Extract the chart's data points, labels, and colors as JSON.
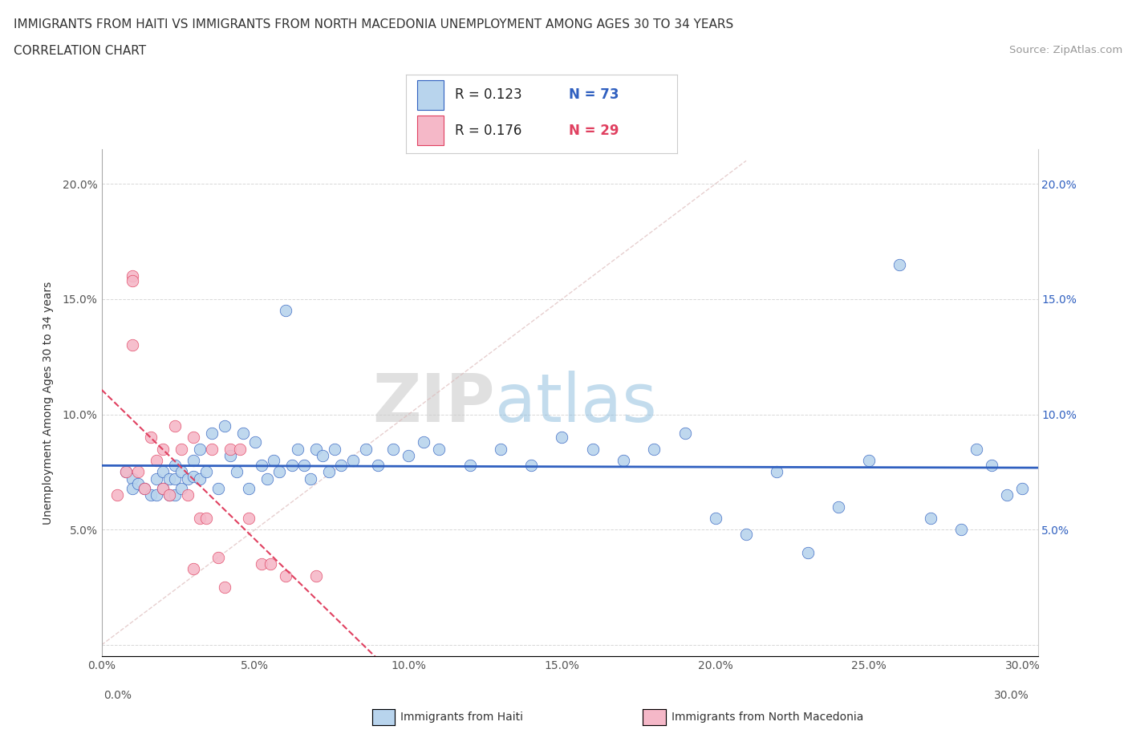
{
  "title_line1": "IMMIGRANTS FROM HAITI VS IMMIGRANTS FROM NORTH MACEDONIA UNEMPLOYMENT AMONG AGES 30 TO 34 YEARS",
  "title_line2": "CORRELATION CHART",
  "source_text": "Source: ZipAtlas.com",
  "ylabel": "Unemployment Among Ages 30 to 34 years",
  "legend_label1": "Immigrants from Haiti",
  "legend_label2": "Immigrants from North Macedonia",
  "legend_R1": "R = 0.123",
  "legend_N1": "N = 73",
  "legend_R2": "R = 0.176",
  "legend_N2": "N = 29",
  "xlim": [
    0.0,
    0.305
  ],
  "ylim": [
    -0.005,
    0.215
  ],
  "xtick_vals": [
    0.0,
    0.05,
    0.1,
    0.15,
    0.2,
    0.25,
    0.3
  ],
  "xtick_labels": [
    "0.0%",
    "5.0%",
    "10.0%",
    "15.0%",
    "20.0%",
    "25.0%",
    "30.0%"
  ],
  "ytick_vals": [
    0.0,
    0.05,
    0.1,
    0.15,
    0.2
  ],
  "ytick_labels": [
    "",
    "5.0%",
    "10.0%",
    "15.0%",
    "20.0%"
  ],
  "color_haiti": "#b8d4ed",
  "color_macedonia": "#f5b8c8",
  "color_line_haiti": "#3060c0",
  "color_line_macedonia": "#e04060",
  "haiti_x": [
    0.008,
    0.01,
    0.01,
    0.012,
    0.014,
    0.016,
    0.018,
    0.018,
    0.02,
    0.02,
    0.022,
    0.022,
    0.024,
    0.024,
    0.024,
    0.026,
    0.026,
    0.028,
    0.03,
    0.03,
    0.032,
    0.032,
    0.034,
    0.036,
    0.038,
    0.04,
    0.042,
    0.044,
    0.046,
    0.048,
    0.05,
    0.052,
    0.054,
    0.056,
    0.058,
    0.06,
    0.062,
    0.064,
    0.066,
    0.068,
    0.07,
    0.072,
    0.074,
    0.076,
    0.078,
    0.082,
    0.086,
    0.09,
    0.095,
    0.1,
    0.105,
    0.11,
    0.12,
    0.13,
    0.14,
    0.15,
    0.16,
    0.17,
    0.18,
    0.19,
    0.2,
    0.21,
    0.22,
    0.23,
    0.24,
    0.25,
    0.26,
    0.27,
    0.28,
    0.285,
    0.29,
    0.295,
    0.3
  ],
  "haiti_y": [
    0.075,
    0.072,
    0.068,
    0.07,
    0.068,
    0.065,
    0.072,
    0.065,
    0.075,
    0.068,
    0.072,
    0.065,
    0.078,
    0.072,
    0.065,
    0.075,
    0.068,
    0.072,
    0.08,
    0.073,
    0.085,
    0.072,
    0.075,
    0.092,
    0.068,
    0.095,
    0.082,
    0.075,
    0.092,
    0.068,
    0.088,
    0.078,
    0.072,
    0.08,
    0.075,
    0.145,
    0.078,
    0.085,
    0.078,
    0.072,
    0.085,
    0.082,
    0.075,
    0.085,
    0.078,
    0.08,
    0.085,
    0.078,
    0.085,
    0.082,
    0.088,
    0.085,
    0.078,
    0.085,
    0.078,
    0.09,
    0.085,
    0.08,
    0.085,
    0.092,
    0.055,
    0.048,
    0.075,
    0.04,
    0.06,
    0.08,
    0.165,
    0.055,
    0.05,
    0.085,
    0.078,
    0.065,
    0.068
  ],
  "mac_x": [
    0.005,
    0.008,
    0.01,
    0.01,
    0.01,
    0.012,
    0.014,
    0.016,
    0.018,
    0.02,
    0.02,
    0.022,
    0.024,
    0.026,
    0.028,
    0.03,
    0.032,
    0.034,
    0.036,
    0.038,
    0.04,
    0.042,
    0.045,
    0.048,
    0.052,
    0.055,
    0.06,
    0.07,
    0.03
  ],
  "mac_y": [
    0.065,
    0.075,
    0.16,
    0.158,
    0.13,
    0.075,
    0.068,
    0.09,
    0.08,
    0.085,
    0.068,
    0.065,
    0.095,
    0.085,
    0.065,
    0.09,
    0.055,
    0.055,
    0.085,
    0.038,
    0.025,
    0.085,
    0.085,
    0.055,
    0.035,
    0.035,
    0.03,
    0.03,
    0.033
  ],
  "watermark_zip": "ZIP",
  "watermark_atlas": "atlas",
  "background_color": "#ffffff"
}
